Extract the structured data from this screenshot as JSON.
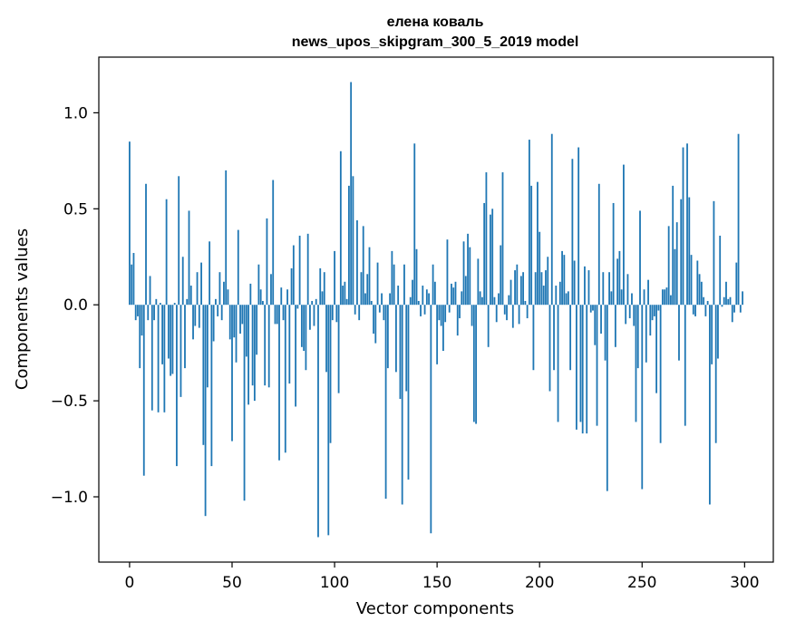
{
  "chart_data": {
    "type": "bar",
    "title_line1": "елена коваль",
    "title_line2": "news_upos_skipgram_300_5_2019 model",
    "xlabel": "Vector components",
    "ylabel": "Components values",
    "xlim": [
      -15,
      314
    ],
    "ylim": [
      -1.34,
      1.29
    ],
    "xticks": [
      0,
      50,
      100,
      150,
      200,
      250,
      300
    ],
    "xtick_labels": [
      "0",
      "50",
      "100",
      "150",
      "200",
      "250",
      "300"
    ],
    "yticks": [
      -1.0,
      -0.5,
      0.0,
      0.5,
      1.0
    ],
    "ytick_labels": [
      "−1.0",
      "−0.5",
      "0.0",
      "0.5",
      "1.0"
    ],
    "bar_color": "#1f77b4",
    "grid": false,
    "values": [
      0.85,
      0.21,
      0.27,
      -0.08,
      -0.06,
      -0.33,
      -0.16,
      -0.89,
      0.63,
      -0.08,
      0.15,
      -0.55,
      -0.08,
      0.03,
      -0.56,
      0.01,
      -0.31,
      -0.56,
      0.55,
      -0.28,
      -0.37,
      -0.36,
      0.01,
      -0.84,
      0.67,
      -0.48,
      0.25,
      -0.33,
      0.03,
      0.49,
      0.1,
      -0.18,
      -0.11,
      0.17,
      -0.12,
      0.22,
      -0.73,
      -1.1,
      -0.43,
      0.33,
      -0.84,
      -0.19,
      0.03,
      -0.06,
      0.17,
      -0.08,
      0.12,
      0.7,
      0.08,
      -0.18,
      -0.71,
      -0.17,
      -0.3,
      0.39,
      -0.15,
      -0.1,
      -1.02,
      -0.27,
      -0.52,
      0.11,
      -0.42,
      -0.5,
      -0.26,
      0.21,
      0.08,
      0.02,
      -0.42,
      0.45,
      -0.43,
      0.16,
      0.65,
      -0.1,
      -0.1,
      -0.81,
      0.09,
      -0.08,
      -0.77,
      0.08,
      -0.41,
      0.19,
      0.31,
      -0.53,
      -0.02,
      0.36,
      -0.22,
      -0.24,
      -0.34,
      0.37,
      -0.13,
      0.02,
      -0.11,
      0.03,
      -1.21,
      0.19,
      0.07,
      0.17,
      -0.35,
      -1.2,
      -0.72,
      -0.08,
      0.28,
      -0.09,
      -0.46,
      0.8,
      0.1,
      0.12,
      0.03,
      0.62,
      1.16,
      0.67,
      -0.05,
      0.44,
      -0.08,
      0.17,
      0.41,
      0.06,
      0.16,
      0.3,
      0.02,
      -0.15,
      -0.2,
      0.22,
      -0.04,
      0.06,
      -0.08,
      -1.01,
      -0.33,
      0.06,
      0.28,
      0.21,
      -0.35,
      0.1,
      -0.49,
      -1.04,
      0.21,
      -0.45,
      -0.91,
      0.04,
      0.13,
      0.84,
      0.29,
      0.02,
      -0.06,
      0.1,
      -0.05,
      0.08,
      0.06,
      -1.19,
      0.21,
      0.12,
      -0.31,
      -0.08,
      -0.11,
      -0.24,
      -0.09,
      0.34,
      -0.04,
      0.11,
      0.09,
      0.12,
      -0.16,
      -0.07,
      0.07,
      0.33,
      0.15,
      0.37,
      0.3,
      -0.11,
      -0.61,
      -0.62,
      0.24,
      0.07,
      0.04,
      0.53,
      0.69,
      -0.22,
      0.47,
      0.5,
      0.04,
      -0.09,
      0.06,
      0.31,
      0.69,
      -0.05,
      -0.08,
      0.05,
      0.13,
      -0.12,
      0.18,
      0.21,
      -0.1,
      0.15,
      0.17,
      0.02,
      -0.07,
      0.86,
      0.62,
      -0.34,
      0.17,
      0.64,
      0.38,
      0.17,
      0.1,
      0.18,
      0.25,
      -0.45,
      0.89,
      -0.34,
      0.1,
      -0.61,
      0.12,
      0.28,
      0.26,
      0.06,
      0.07,
      -0.34,
      0.76,
      0.23,
      -0.65,
      0.82,
      -0.61,
      -0.67,
      0.2,
      -0.67,
      0.18,
      -0.04,
      -0.03,
      -0.21,
      -0.63,
      0.63,
      -0.15,
      0.17,
      -0.29,
      -0.97,
      0.17,
      0.07,
      0.53,
      -0.22,
      0.24,
      0.28,
      0.08,
      0.73,
      -0.1,
      0.16,
      -0.07,
      0.06,
      -0.11,
      -0.61,
      -0.33,
      0.49,
      -0.96,
      0.08,
      -0.3,
      0.13,
      -0.16,
      -0.08,
      -0.06,
      -0.46,
      -0.03,
      -0.72,
      0.08,
      0.08,
      0.09,
      0.41,
      0.05,
      0.62,
      0.29,
      0.43,
      -0.29,
      0.55,
      0.82,
      -0.63,
      0.84,
      0.56,
      0.26,
      -0.05,
      -0.06,
      0.23,
      0.16,
      0.12,
      0.04,
      -0.06,
      0.02,
      -1.04,
      -0.31,
      0.54,
      -0.72,
      -0.28,
      0.36,
      -0.01,
      0.04,
      0.12,
      0.03,
      0.04,
      -0.09,
      -0.04,
      0.22,
      0.89,
      -0.04,
      0.07
    ]
  }
}
